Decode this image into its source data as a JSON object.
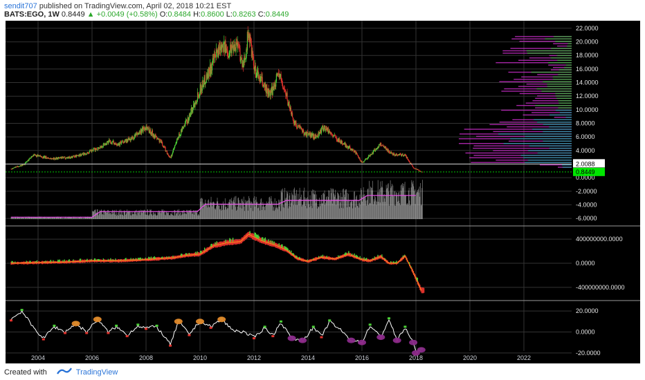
{
  "header": {
    "user": "sendit707",
    "published_text": " published on TradingView.com, April 02, 2018 10:21 EST",
    "symbol": "BATS:EGO, 1W",
    "last": "0.8449",
    "change": "+0.0049 (+0.58%)",
    "o_label": "O:",
    "o": "0.8484",
    "h_label": "H:",
    "h": "0.8600",
    "l_label": "L:",
    "l": "0.8263",
    "c_label": "C:",
    "c": "0.8449"
  },
  "footer": {
    "created_with": "Created with",
    "brand": "TradingView"
  },
  "colors": {
    "up": "#4cd137",
    "down": "#e0322c",
    "accent": "#2a74d8",
    "last_badge": "#00e600"
  },
  "chart_data": [
    {
      "type": "candlestick",
      "title": "BATS:EGO, 1W",
      "x_ticks": [
        "2004",
        "2006",
        "2008",
        "2010",
        "2012",
        "2014",
        "2016",
        "2018",
        "2020",
        "2022"
      ],
      "y_ticks": [
        "22.0000",
        "20.0000",
        "18.0000",
        "16.0000",
        "14.0000",
        "12.0000",
        "10.0000",
        "8.0000",
        "6.0000",
        "4.0000",
        "2.0088",
        "0.8449",
        "0.0000",
        "-2.0000",
        "-4.0000",
        "-6.0000"
      ],
      "ylim": [
        -6.5,
        22.5
      ],
      "close_path": [
        [
          2003.0,
          1.3
        ],
        [
          2003.5,
          2.0
        ],
        [
          2003.8,
          3.3
        ],
        [
          2004.5,
          2.8
        ],
        [
          2005.2,
          3.0
        ],
        [
          2005.8,
          3.6
        ],
        [
          2006.3,
          4.5
        ],
        [
          2006.6,
          5.3
        ],
        [
          2007.0,
          5.0
        ],
        [
          2007.5,
          5.8
        ],
        [
          2008.0,
          7.5
        ],
        [
          2008.6,
          5.0
        ],
        [
          2008.9,
          2.8
        ],
        [
          2009.2,
          6.0
        ],
        [
          2009.6,
          9.0
        ],
        [
          2010.0,
          13.0
        ],
        [
          2010.5,
          17.0
        ],
        [
          2010.8,
          20.0
        ],
        [
          2011.0,
          18.5
        ],
        [
          2011.4,
          20.0
        ],
        [
          2011.6,
          16.0
        ],
        [
          2011.8,
          21.5
        ],
        [
          2012.0,
          16.0
        ],
        [
          2012.3,
          14.0
        ],
        [
          2012.6,
          12.0
        ],
        [
          2012.9,
          15.5
        ],
        [
          2013.2,
          12.0
        ],
        [
          2013.5,
          8.0
        ],
        [
          2013.9,
          6.5
        ],
        [
          2014.3,
          6.0
        ],
        [
          2014.6,
          7.5
        ],
        [
          2014.9,
          6.3
        ],
        [
          2015.3,
          5.0
        ],
        [
          2015.7,
          4.0
        ],
        [
          2016.0,
          2.2
        ],
        [
          2016.3,
          3.3
        ],
        [
          2016.7,
          5.0
        ],
        [
          2017.1,
          3.5
        ],
        [
          2017.6,
          3.3
        ],
        [
          2017.9,
          1.5
        ],
        [
          2018.2,
          0.85
        ]
      ],
      "last_value": 0.8449,
      "marked_level": 2.0088,
      "volume_profile": true
    },
    {
      "type": "line",
      "title": "",
      "y_ticks": [
        "400000000.0000",
        "0.0000",
        "-400000000.0000"
      ],
      "ylim": [
        -550000000,
        550000000
      ],
      "points": [
        [
          2003.0,
          0
        ],
        [
          2004.0,
          10000000
        ],
        [
          2005.0,
          20000000
        ],
        [
          2006.0,
          40000000
        ],
        [
          2007.0,
          40000000
        ],
        [
          2008.0,
          60000000
        ],
        [
          2009.0,
          90000000
        ],
        [
          2009.5,
          130000000
        ],
        [
          2010.0,
          150000000
        ],
        [
          2010.5,
          290000000
        ],
        [
          2011.0,
          340000000
        ],
        [
          2011.5,
          360000000
        ],
        [
          2011.8,
          480000000
        ],
        [
          2012.3,
          370000000
        ],
        [
          2012.8,
          300000000
        ],
        [
          2013.2,
          220000000
        ],
        [
          2013.6,
          80000000
        ],
        [
          2014.0,
          30000000
        ],
        [
          2014.5,
          100000000
        ],
        [
          2015.0,
          70000000
        ],
        [
          2015.5,
          150000000
        ],
        [
          2016.0,
          60000000
        ],
        [
          2016.3,
          40000000
        ],
        [
          2016.7,
          110000000
        ],
        [
          2017.0,
          0
        ],
        [
          2017.3,
          0
        ],
        [
          2017.6,
          120000000
        ],
        [
          2017.9,
          -150000000
        ],
        [
          2018.2,
          -450000000
        ]
      ]
    },
    {
      "type": "line",
      "title": "",
      "y_ticks": [
        "20.0000",
        "0.0000",
        "-20.0000"
      ],
      "ylim": [
        -26,
        26
      ],
      "points": [
        [
          2003.0,
          12
        ],
        [
          2003.4,
          20
        ],
        [
          2003.8,
          5
        ],
        [
          2004.2,
          -6
        ],
        [
          2004.6,
          5
        ],
        [
          2005.0,
          0
        ],
        [
          2005.4,
          8
        ],
        [
          2005.8,
          0
        ],
        [
          2006.2,
          12
        ],
        [
          2006.6,
          0
        ],
        [
          2006.9,
          5
        ],
        [
          2007.3,
          -3
        ],
        [
          2007.7,
          6
        ],
        [
          2008.0,
          4
        ],
        [
          2008.4,
          5
        ],
        [
          2008.9,
          -12
        ],
        [
          2009.2,
          10
        ],
        [
          2009.6,
          -2
        ],
        [
          2010.0,
          10
        ],
        [
          2010.4,
          5
        ],
        [
          2010.8,
          12
        ],
        [
          2011.2,
          2
        ],
        [
          2011.6,
          0
        ],
        [
          2012.0,
          -5
        ],
        [
          2012.4,
          4
        ],
        [
          2012.7,
          -3
        ],
        [
          2013.0,
          9
        ],
        [
          2013.4,
          -6
        ],
        [
          2013.8,
          -8
        ],
        [
          2014.2,
          4
        ],
        [
          2014.5,
          -4
        ],
        [
          2014.8,
          10
        ],
        [
          2015.2,
          2
        ],
        [
          2015.6,
          -8
        ],
        [
          2016.0,
          -10
        ],
        [
          2016.3,
          6
        ],
        [
          2016.7,
          -5
        ],
        [
          2017.0,
          12
        ],
        [
          2017.3,
          -8
        ],
        [
          2017.6,
          4
        ],
        [
          2017.9,
          -10
        ],
        [
          2018.0,
          -20
        ],
        [
          2018.2,
          -17
        ]
      ]
    }
  ]
}
